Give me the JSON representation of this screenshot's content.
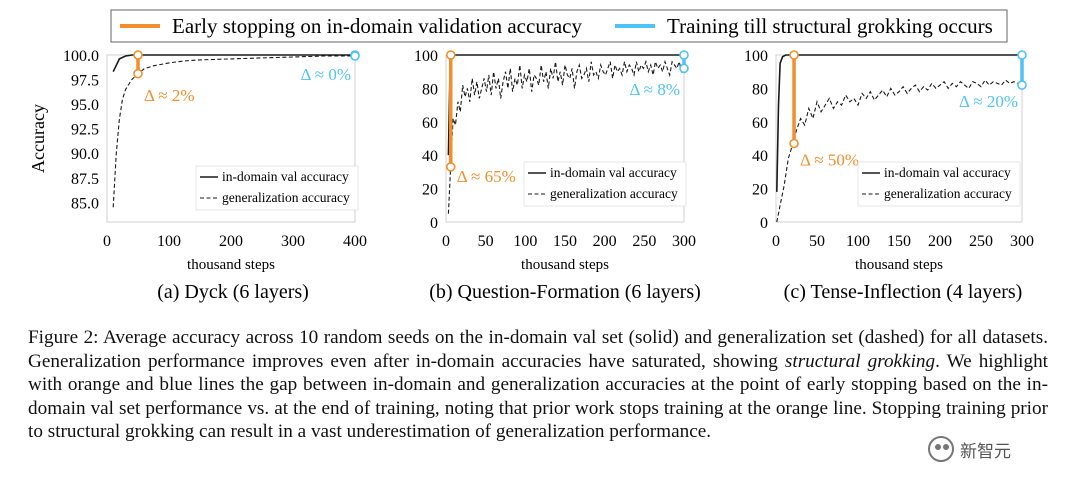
{
  "legend": {
    "orange_label": "Early stopping on in-domain validation accuracy",
    "blue_label": "Training till structural grokking occurs"
  },
  "colors": {
    "orange": "#F28E2B",
    "blue": "#4FC3F7",
    "line": "#1a1a1a"
  },
  "chart_data": [
    {
      "type": "line",
      "subtitle": "(a) Dyck (6 layers)",
      "ylabel": "Accuracy",
      "xlabel": "thousand steps",
      "xlim": [
        0,
        400
      ],
      "ylim": [
        83,
        100
      ],
      "xticks": [
        "0",
        "100",
        "200",
        "300",
        "400"
      ],
      "yticks": [
        "100.0",
        "97.5",
        "95.0",
        "92.5",
        "90.0",
        "87.5",
        "85.0"
      ],
      "ytick_values": [
        100,
        97.5,
        95,
        92.5,
        90,
        87.5,
        85
      ],
      "legend_entries": [
        "in-domain val accuracy",
        "generalization accuracy"
      ],
      "series": [
        {
          "name": "in-domain val accuracy",
          "style": "solid",
          "x": [
            10,
            20,
            30,
            40,
            50,
            75,
            100,
            150,
            200,
            250,
            300,
            350,
            400
          ],
          "y": [
            98.3,
            99.6,
            99.9,
            100,
            100,
            100,
            100,
            100,
            100,
            100,
            100,
            100,
            100
          ]
        },
        {
          "name": "generalization accuracy",
          "style": "dashed",
          "x": [
            10,
            15,
            20,
            25,
            30,
            35,
            40,
            45,
            50,
            60,
            75,
            100,
            125,
            150,
            200,
            250,
            300,
            350,
            400
          ],
          "y": [
            84.5,
            90.0,
            93.5,
            95.5,
            96.5,
            97.0,
            97.5,
            97.8,
            98.1,
            98.6,
            98.9,
            99.2,
            99.4,
            99.5,
            99.6,
            99.7,
            99.8,
            99.9,
            99.9
          ]
        }
      ],
      "orange_marker": {
        "x": 50,
        "y_low": 98.1,
        "y_high": 100,
        "label": "Δ ≈ 2%"
      },
      "blue_marker": {
        "x": 400,
        "y_low": 99.9,
        "y_high": 100,
        "label": "Δ ≈ 0%"
      }
    },
    {
      "type": "line",
      "subtitle": "(b) Question-Formation (6 layers)",
      "ylabel": "",
      "xlabel": "thousand steps",
      "xlim": [
        0,
        300
      ],
      "ylim": [
        0,
        100
      ],
      "xticks": [
        "0",
        "50",
        "100",
        "150",
        "200",
        "250",
        "300"
      ],
      "yticks": [
        "100",
        "80",
        "60",
        "40",
        "20",
        "0"
      ],
      "ytick_values": [
        100,
        80,
        60,
        40,
        20,
        0
      ],
      "legend_entries": [
        "in-domain val accuracy",
        "generalization accuracy"
      ],
      "series": [
        {
          "name": "in-domain val accuracy",
          "style": "solid",
          "x": [
            3,
            5,
            7,
            10,
            15,
            30,
            100,
            200,
            300
          ],
          "y": [
            40,
            90,
            99,
            100,
            100,
            100,
            100,
            100,
            100
          ]
        },
        {
          "name": "generalization accuracy",
          "style": "dashed",
          "x": [
            3,
            6,
            9,
            12,
            15,
            18,
            21,
            24,
            27,
            30,
            33,
            36,
            39,
            42,
            45,
            48,
            51,
            54,
            57,
            60,
            63,
            66,
            69,
            72,
            75,
            78,
            81,
            84,
            87,
            90,
            93,
            96,
            99,
            102,
            105,
            108,
            111,
            114,
            117,
            120,
            123,
            126,
            129,
            132,
            135,
            138,
            141,
            144,
            147,
            150,
            153,
            156,
            159,
            162,
            165,
            168,
            171,
            174,
            177,
            180,
            183,
            186,
            189,
            192,
            195,
            198,
            201,
            204,
            207,
            210,
            213,
            216,
            219,
            222,
            225,
            228,
            231,
            234,
            237,
            240,
            243,
            246,
            249,
            252,
            255,
            258,
            261,
            264,
            267,
            270,
            273,
            276,
            279,
            282,
            285,
            288,
            291,
            294,
            297,
            300
          ],
          "y": [
            5,
            35,
            62,
            58,
            72,
            66,
            82,
            75,
            80,
            72,
            86,
            76,
            84,
            74,
            80,
            86,
            78,
            88,
            76,
            90,
            80,
            86,
            74,
            84,
            90,
            80,
            92,
            78,
            86,
            82,
            94,
            80,
            88,
            84,
            92,
            78,
            88,
            86,
            82,
            94,
            84,
            90,
            80,
            92,
            86,
            96,
            84,
            90,
            82,
            94,
            88,
            86,
            92,
            80,
            90,
            94,
            86,
            88,
            92,
            84,
            96,
            88,
            90,
            86,
            94,
            90,
            88,
            92,
            96,
            86,
            94,
            90,
            92,
            88,
            96,
            90,
            94,
            92,
            88,
            96,
            90,
            94,
            92,
            96,
            90,
            94,
            88,
            96,
            92,
            94,
            90,
            96,
            92,
            88,
            96,
            94,
            92,
            96,
            90,
            92
          ]
        }
      ],
      "orange_marker": {
        "x": 6,
        "y_low": 33,
        "y_high": 100,
        "label": "Δ ≈ 65%"
      },
      "blue_marker": {
        "x": 300,
        "y_low": 92,
        "y_high": 100,
        "label": "Δ ≈ 8%"
      }
    },
    {
      "type": "line",
      "subtitle": "(c) Tense-Inflection (4 layers)",
      "ylabel": "",
      "xlabel": "thousand steps",
      "xlim": [
        0,
        300
      ],
      "ylim": [
        0,
        100
      ],
      "xticks": [
        "0",
        "50",
        "100",
        "150",
        "200",
        "250",
        "300"
      ],
      "yticks": [
        "100",
        "80",
        "60",
        "40",
        "20",
        "0"
      ],
      "ytick_values": [
        100,
        80,
        60,
        40,
        20,
        0
      ],
      "legend_entries": [
        "in-domain val accuracy",
        "generalization accuracy"
      ],
      "series": [
        {
          "name": "in-domain val accuracy",
          "style": "solid",
          "x": [
            1,
            3,
            5,
            8,
            12,
            20,
            50,
            100,
            200,
            300
          ],
          "y": [
            18,
            70,
            95,
            99,
            100,
            100,
            100,
            100,
            100,
            100
          ]
        },
        {
          "name": "generalization accuracy",
          "style": "dashed",
          "x": [
            1,
            5,
            10,
            15,
            20,
            25,
            30,
            35,
            40,
            45,
            50,
            55,
            60,
            65,
            70,
            75,
            80,
            85,
            90,
            95,
            100,
            105,
            110,
            115,
            120,
            125,
            130,
            135,
            140,
            145,
            150,
            155,
            160,
            165,
            170,
            175,
            180,
            185,
            190,
            195,
            200,
            205,
            210,
            215,
            220,
            225,
            230,
            235,
            240,
            245,
            250,
            255,
            260,
            265,
            270,
            275,
            280,
            285,
            290,
            295,
            300
          ],
          "y": [
            0,
            10,
            22,
            38,
            46,
            55,
            62,
            58,
            68,
            62,
            72,
            66,
            70,
            74,
            68,
            72,
            70,
            76,
            72,
            74,
            70,
            77,
            74,
            78,
            73,
            76,
            79,
            75,
            80,
            76,
            78,
            81,
            77,
            80,
            82,
            78,
            81,
            79,
            83,
            80,
            82,
            84,
            80,
            83,
            81,
            84,
            82,
            80,
            84,
            83,
            81,
            85,
            82,
            84,
            83,
            82,
            85,
            83,
            84,
            83,
            82
          ]
        }
      ],
      "orange_marker": {
        "x": 22,
        "y_low": 47,
        "y_high": 100,
        "label": "Δ ≈ 50%"
      },
      "blue_marker": {
        "x": 300,
        "y_low": 82,
        "y_high": 100,
        "label": "Δ ≈ 20%"
      }
    }
  ],
  "caption": {
    "prefix": "Figure 2: Average accuracy across 10 random seeds on the in-domain val set (solid) and generalization set (dashed) for all datasets. Generalization performance improves even after in-domain accuracies have saturated, showing ",
    "italic": "structural grokking",
    "suffix": ".  We highlight with orange and blue lines the gap between in-domain and generalization accuracies at the point of early stopping based on the in-domain val set performance vs. at the end of training, noting that prior work stops training at the orange line. Stopping training prior to structural grokking can result in a vast underestimation of generalization performance."
  },
  "watermark": {
    "text": "新智元"
  }
}
